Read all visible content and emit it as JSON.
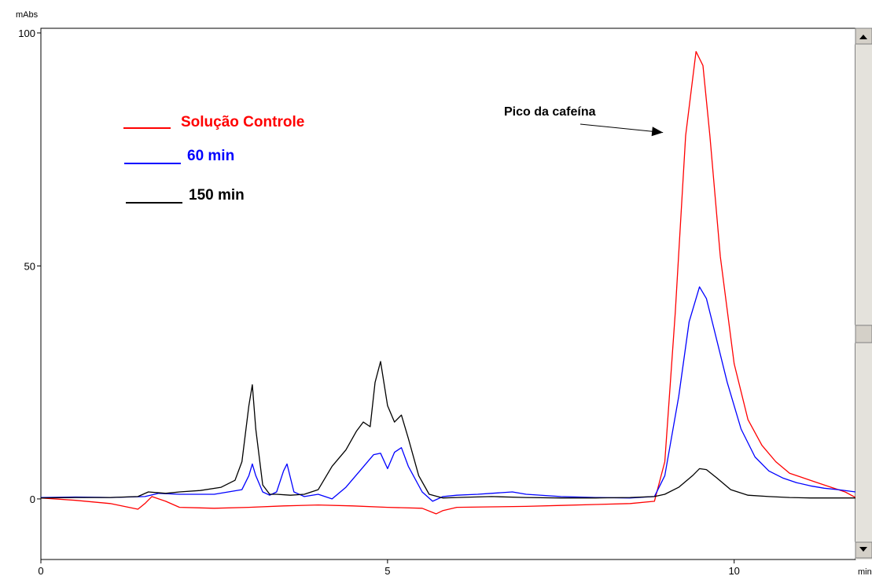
{
  "chart_data": {
    "type": "line",
    "title": "",
    "xlabel": "",
    "ylabel": "",
    "x_unit": "min",
    "y_unit": "mAbs",
    "xlim": [
      0,
      11.75
    ],
    "ylim": [
      -13,
      101
    ],
    "x_ticks": [
      0,
      5,
      10
    ],
    "y_ticks": [
      0,
      50,
      100
    ],
    "grid": false,
    "legend_position": "top-left",
    "annotation": {
      "text": "Pico da cafeína",
      "points_to": [
        9.2,
        82
      ]
    },
    "series": [
      {
        "name": "Solução Controle",
        "color": "#ff0000",
        "x": [
          0.0,
          0.5,
          1.0,
          1.4,
          1.5,
          1.6,
          1.8,
          2.0,
          2.5,
          3.0,
          3.5,
          4.0,
          4.5,
          5.0,
          5.5,
          5.7,
          5.8,
          6.0,
          6.5,
          7.0,
          7.5,
          8.0,
          8.5,
          8.85,
          9.0,
          9.15,
          9.3,
          9.45,
          9.55,
          9.65,
          9.8,
          10.0,
          10.2,
          10.4,
          10.6,
          10.8,
          11.0,
          11.2,
          11.4,
          11.6,
          11.75
        ],
        "y": [
          0.2,
          -0.3,
          -1.0,
          -2.2,
          -1.0,
          0.5,
          -0.5,
          -1.8,
          -2.0,
          -1.8,
          -1.5,
          -1.3,
          -1.5,
          -1.8,
          -2.0,
          -3.2,
          -2.5,
          -1.8,
          -1.7,
          -1.6,
          -1.4,
          -1.2,
          -1.0,
          -0.5,
          8,
          40,
          78,
          96,
          93,
          78,
          52,
          29,
          17,
          11.5,
          8,
          5.5,
          4.5,
          3.5,
          2.5,
          1.5,
          0.3
        ]
      },
      {
        "name": "60 min",
        "color": "#0000ff",
        "x": [
          0.0,
          0.5,
          1.0,
          1.5,
          1.7,
          2.0,
          2.5,
          2.9,
          3.0,
          3.05,
          3.1,
          3.2,
          3.3,
          3.4,
          3.5,
          3.55,
          3.65,
          3.8,
          4.0,
          4.2,
          4.4,
          4.6,
          4.8,
          4.9,
          5.0,
          5.1,
          5.2,
          5.3,
          5.5,
          5.65,
          5.8,
          6.0,
          6.3,
          6.5,
          6.8,
          7.0,
          7.5,
          8.0,
          8.5,
          8.85,
          9.0,
          9.2,
          9.35,
          9.5,
          9.6,
          9.7,
          9.9,
          10.1,
          10.3,
          10.5,
          10.7,
          10.9,
          11.1,
          11.3,
          11.5,
          11.75
        ],
        "y": [
          0.3,
          0.4,
          0.3,
          0.5,
          1.2,
          1.0,
          1.0,
          2.0,
          5.0,
          7.5,
          5.0,
          1.5,
          0.8,
          1.5,
          6.0,
          7.5,
          1.5,
          0.5,
          1.0,
          0.0,
          2.5,
          6.0,
          9.5,
          9.8,
          6.5,
          10.0,
          11.0,
          7.0,
          1.5,
          -0.5,
          0.5,
          0.8,
          1.0,
          1.2,
          1.5,
          1.0,
          0.5,
          0.3,
          0.2,
          0.5,
          5,
          22,
          38,
          45.5,
          43,
          37,
          25,
          15,
          9,
          6,
          4.5,
          3.5,
          2.8,
          2.3,
          2.0,
          1.5
        ]
      },
      {
        "name": "150 min",
        "color": "#000000",
        "x": [
          0.0,
          0.5,
          1.0,
          1.4,
          1.55,
          1.8,
          2.0,
          2.3,
          2.6,
          2.8,
          2.9,
          3.0,
          3.05,
          3.1,
          3.2,
          3.3,
          3.4,
          3.6,
          3.8,
          4.0,
          4.2,
          4.4,
          4.55,
          4.65,
          4.75,
          4.82,
          4.9,
          5.0,
          5.1,
          5.2,
          5.3,
          5.45,
          5.6,
          5.8,
          6.0,
          6.5,
          7.0,
          7.5,
          8.0,
          8.5,
          8.85,
          9.0,
          9.2,
          9.4,
          9.5,
          9.6,
          9.75,
          9.95,
          10.2,
          10.5,
          10.8,
          11.1,
          11.4,
          11.75
        ],
        "y": [
          0.2,
          0.3,
          0.3,
          0.5,
          1.5,
          1.2,
          1.5,
          1.8,
          2.5,
          4.0,
          8.0,
          20,
          24.5,
          15,
          3.0,
          1.0,
          1.0,
          0.8,
          1.0,
          2.0,
          7.0,
          10.5,
          14.5,
          16.5,
          15.5,
          25,
          29.5,
          20,
          16.5,
          18,
          13,
          5.0,
          1.0,
          0.2,
          0.3,
          0.5,
          0.3,
          0.2,
          0.2,
          0.3,
          0.5,
          1.0,
          2.5,
          5.0,
          6.5,
          6.3,
          4.5,
          2.0,
          0.8,
          0.5,
          0.3,
          0.2,
          0.2,
          0.2
        ]
      }
    ]
  }
}
